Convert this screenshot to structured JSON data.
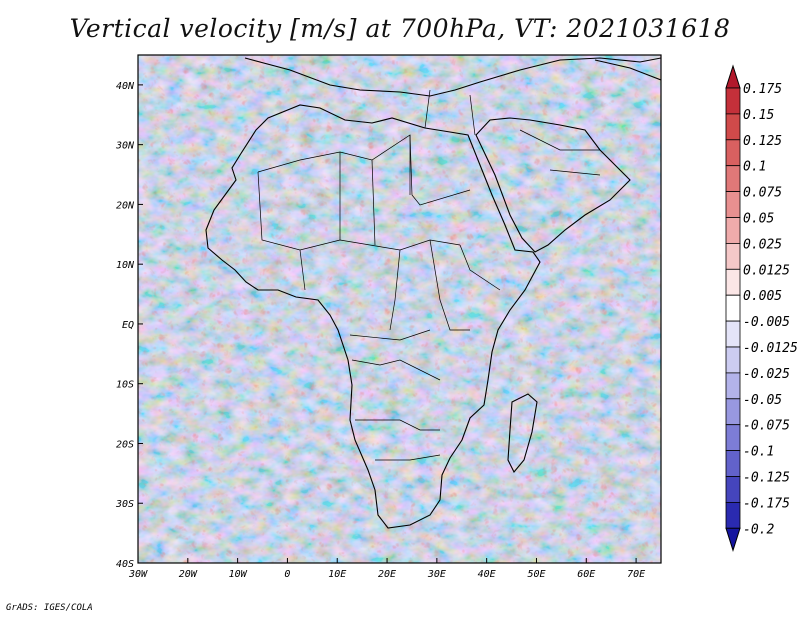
{
  "title": "Vertical velocity [m/s] at 700hPa, VT: 2021031618",
  "credit": "GrADS: IGES/COLA",
  "map": {
    "lon_labels": [
      "30W",
      "20W",
      "10W",
      "0",
      "10E",
      "20E",
      "30E",
      "40E",
      "50E",
      "60E",
      "70E"
    ],
    "lat_labels": [
      "40N",
      "30N",
      "20N",
      "10N",
      "EQ",
      "10S",
      "20S",
      "30S",
      "40S"
    ],
    "lon_range": [
      -30,
      75
    ],
    "lat_range": [
      -40,
      45
    ],
    "region": "Africa"
  },
  "colorbar": {
    "labels": [
      "0.175",
      "0.15",
      "0.125",
      "0.1",
      "0.075",
      "0.05",
      "0.025",
      "0.0125",
      "0.005",
      "-0.005",
      "-0.0125",
      "-0.025",
      "-0.05",
      "-0.075",
      "-0.1",
      "-0.125",
      "-0.175",
      "-0.2"
    ],
    "colors": [
      "#b2182b",
      "#c4303a",
      "#d04a4a",
      "#d96060",
      "#e07878",
      "#e89090",
      "#efabab",
      "#f5c8c8",
      "#fbe6e6",
      "#ffffff",
      "#e4e4f8",
      "#ccccf1",
      "#b3b3ea",
      "#9898e0",
      "#7d7dd6",
      "#6262cb",
      "#4545bd",
      "#2a2ab0",
      "#15159f"
    ]
  },
  "chart_data": {
    "type": "heatmap",
    "title": "Vertical velocity [m/s] at 700hPa, VT: 2021031618",
    "variable": "Vertical velocity",
    "units": "m/s",
    "level": "700hPa",
    "valid_time": "2021031618",
    "x_range_deg": [
      -30,
      75
    ],
    "y_range_deg": [
      -40,
      45
    ],
    "levels": [
      -0.2,
      -0.175,
      -0.125,
      -0.1,
      -0.075,
      -0.05,
      -0.025,
      -0.0125,
      -0.005,
      0.005,
      0.0125,
      0.025,
      0.05,
      0.075,
      0.1,
      0.125,
      0.15,
      0.175
    ]
  }
}
